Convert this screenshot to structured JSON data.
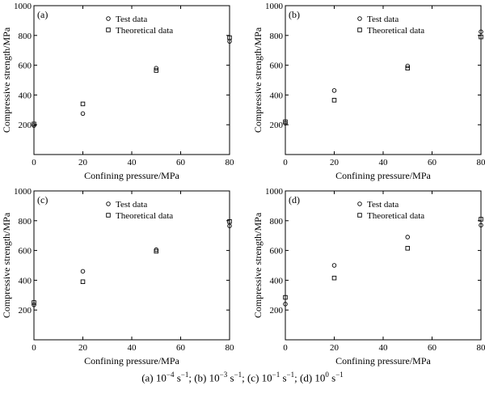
{
  "chart_data": [
    {
      "type": "scatter",
      "panel_label": "(a)",
      "xlabel": "Confining pressure/MPa",
      "ylabel": "Compressive strength/MPa",
      "xlim": [
        0,
        80
      ],
      "ylim": [
        0,
        1000
      ],
      "xticks": [
        0,
        20,
        40,
        60,
        80
      ],
      "yticks": [
        200,
        400,
        600,
        800,
        1000
      ],
      "grid": false,
      "legend_position": "top-center",
      "series": [
        {
          "name": "Test data",
          "marker": "circle",
          "x": [
            0,
            20,
            50,
            80
          ],
          "y": [
            195,
            275,
            580,
            760
          ]
        },
        {
          "name": "Theoretical data",
          "marker": "square",
          "x": [
            0,
            20,
            50,
            80
          ],
          "y": [
            205,
            340,
            565,
            785
          ]
        }
      ]
    },
    {
      "type": "scatter",
      "panel_label": "(b)",
      "xlabel": "Confining pressure/MPa",
      "ylabel": "Compressive strength/MPa",
      "xlim": [
        0,
        80
      ],
      "ylim": [
        0,
        1000
      ],
      "xticks": [
        0,
        20,
        40,
        60,
        80
      ],
      "yticks": [
        200,
        400,
        600,
        800,
        1000
      ],
      "grid": false,
      "legend_position": "top-center",
      "series": [
        {
          "name": "Test data",
          "marker": "circle",
          "x": [
            0,
            20,
            50,
            80
          ],
          "y": [
            210,
            430,
            595,
            825
          ]
        },
        {
          "name": "Theoretical data",
          "marker": "square",
          "x": [
            0,
            20,
            50,
            80
          ],
          "y": [
            220,
            365,
            580,
            790
          ]
        }
      ]
    },
    {
      "type": "scatter",
      "panel_label": "(c)",
      "xlabel": "Confining pressure/MPa",
      "ylabel": "Compressive strength/MPa",
      "xlim": [
        0,
        80
      ],
      "ylim": [
        0,
        1000
      ],
      "xticks": [
        0,
        20,
        40,
        60,
        80
      ],
      "yticks": [
        200,
        400,
        600,
        800,
        1000
      ],
      "grid": false,
      "legend_position": "top-center",
      "series": [
        {
          "name": "Test data",
          "marker": "circle",
          "x": [
            0,
            20,
            50,
            80
          ],
          "y": [
            235,
            460,
            605,
            765
          ]
        },
        {
          "name": "Theoretical data",
          "marker": "square",
          "x": [
            0,
            20,
            50,
            80
          ],
          "y": [
            250,
            390,
            595,
            795
          ]
        }
      ]
    },
    {
      "type": "scatter",
      "panel_label": "(d)",
      "xlabel": "Confining pressure/MPa",
      "ylabel": "Compressive strength/MPa",
      "xlim": [
        0,
        80
      ],
      "ylim": [
        0,
        1000
      ],
      "xticks": [
        0,
        20,
        40,
        60,
        80
      ],
      "yticks": [
        200,
        400,
        600,
        800,
        1000
      ],
      "grid": false,
      "legend_position": "top-center",
      "series": [
        {
          "name": "Test data",
          "marker": "circle",
          "x": [
            0,
            20,
            50,
            80
          ],
          "y": [
            240,
            500,
            690,
            770
          ]
        },
        {
          "name": "Theoretical data",
          "marker": "square",
          "x": [
            0,
            20,
            50,
            80
          ],
          "y": [
            285,
            415,
            615,
            810
          ]
        }
      ]
    }
  ],
  "caption": {
    "parts": [
      {
        "text": "(a)  10"
      },
      {
        "text": "−4",
        "sup": true
      },
      {
        "text": " s"
      },
      {
        "text": "−1",
        "sup": true
      },
      {
        "text": ";  (b) 10"
      },
      {
        "text": "−3",
        "sup": true
      },
      {
        "text": " s"
      },
      {
        "text": "−1",
        "sup": true
      },
      {
        "text": "; (c) 10"
      },
      {
        "text": "−1",
        "sup": true
      },
      {
        "text": " s"
      },
      {
        "text": "−1",
        "sup": true
      },
      {
        "text": "; (d) 10"
      },
      {
        "text": "0",
        "sup": true
      },
      {
        "text": " s"
      },
      {
        "text": "−1",
        "sup": true
      }
    ]
  }
}
